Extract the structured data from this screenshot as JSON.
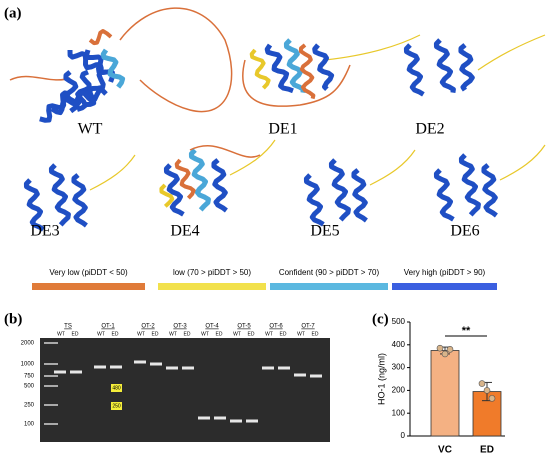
{
  "panel_labels": [
    "(a)",
    "(b)",
    "(c)"
  ],
  "proteins": [
    "WT",
    "DE1",
    "DE2",
    "DE3",
    "DE4",
    "DE5",
    "DE6"
  ],
  "plddt_legend": [
    {
      "label": "Very low (piDDT < 50)",
      "color": "#e07b39"
    },
    {
      "label": "low (70 > piDDT > 50)",
      "color": "#f2e14c"
    },
    {
      "label": "Confident (90 > piDDT > 70)",
      "color": "#5bb8e0"
    },
    {
      "label": "Very high (piDDT > 90)",
      "color": "#3b5fe0"
    }
  ],
  "gel": {
    "ladder": [
      "2000",
      "1000",
      "750",
      "500",
      "250",
      "100"
    ],
    "lanes": [
      "TS",
      "OT-1",
      "OT-2",
      "OT-3",
      "OT-4",
      "OT-5",
      "OT-6",
      "OT-7"
    ],
    "sub_lanes": [
      "WT",
      "ED"
    ],
    "size_labels": [
      "480",
      "250"
    ]
  },
  "chart_data": {
    "type": "bar",
    "y_label": "HO-1 (ng/ml)",
    "categories": [
      "VC",
      "ED"
    ],
    "values": [
      375,
      195
    ],
    "errors": [
      15,
      40
    ],
    "points": [
      [
        385,
        360,
        380
      ],
      [
        230,
        200,
        165
      ]
    ],
    "colors": [
      "#f4b183",
      "#f07b2a"
    ],
    "ylim": [
      0,
      500
    ],
    "yticks": [
      0,
      100,
      200,
      300,
      400,
      500
    ],
    "significance": "**"
  }
}
